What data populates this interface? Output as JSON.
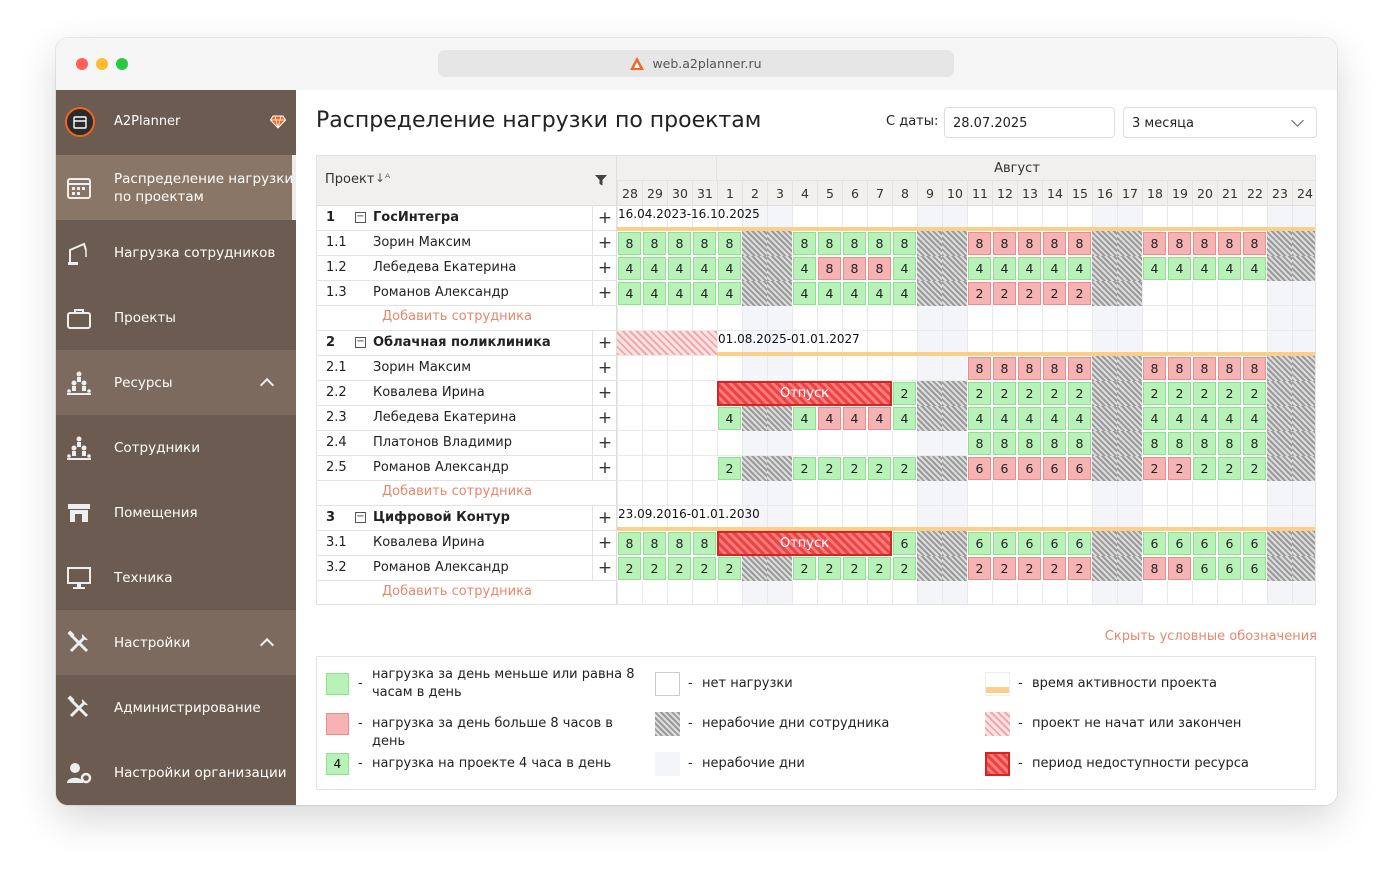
{
  "browser": {
    "url": "web.a2planner.ru"
  },
  "sidebar": {
    "app_name": "A2Planner",
    "items": [
      {
        "label": "Распределение нагрузки по проектам",
        "icon": "calendar-icon",
        "active": true
      },
      {
        "label": "Нагрузка сотрудников",
        "icon": "crane-icon"
      },
      {
        "label": "Проекты",
        "icon": "briefcase-icon"
      },
      {
        "label": "Ресурсы",
        "icon": "people-pyramid-icon",
        "expanded": true
      },
      {
        "label": "Сотрудники",
        "icon": "people-pyramid-icon",
        "sub": true
      },
      {
        "label": "Помещения",
        "icon": "store-icon",
        "sub": true
      },
      {
        "label": "Техника",
        "icon": "monitor-icon",
        "sub": true
      },
      {
        "label": "Настройки",
        "icon": "tools-icon",
        "expanded": true
      },
      {
        "label": "Администрирование",
        "icon": "tools-icon",
        "sub": true
      },
      {
        "label": "Настройки организации",
        "icon": "user-gear-icon",
        "sub": true
      }
    ]
  },
  "page": {
    "title": "Распределение нагрузки по проектам",
    "date_label": "С даты:",
    "date_value": "28.07.2025",
    "period_value": "3 месяца"
  },
  "grid": {
    "project_col_label": "Проект",
    "month": "Август",
    "days": [
      "28",
      "29",
      "30",
      "31",
      "1",
      "2",
      "3",
      "4",
      "5",
      "6",
      "7",
      "8",
      "9",
      "10",
      "11",
      "12",
      "13",
      "14",
      "15",
      "16",
      "17",
      "18",
      "19",
      "20",
      "21",
      "22",
      "23",
      "24"
    ],
    "weekend": [
      5,
      6,
      12,
      13,
      19,
      20,
      26,
      27
    ],
    "add_label": "Добавить сотрудника",
    "rows": [
      {
        "type": "project",
        "num": "1",
        "name": "ГосИнтегра",
        "dates": "16.04.2023-16.10.2025",
        "active_from": 0
      },
      {
        "type": "emp",
        "num": "1.1",
        "name": "Зорин Максим",
        "cells": "8,8,8,8,8,H,H,8,8,8,8,8,H,H,8r,8r,8r,8r,8r,H,H,8r,8r,8r,8r,8r,H,H"
      },
      {
        "type": "emp",
        "num": "1.2",
        "name": "Лебедева Екатерина",
        "cells": "4,4,4,4,4,H,H,4,8r,8r,8r,4,H,H,4,4,4,4,4,H,H,4,4,4,4,4,H,H"
      },
      {
        "type": "emp",
        "num": "1.3",
        "name": "Романов Александр",
        "cells": "4,4,4,4,4,H,H,4,4,4,4,4,H,H,2r,2r,2r,2r,2r,H,H,,,,,,,"
      },
      {
        "type": "add"
      },
      {
        "type": "project",
        "num": "2",
        "name": "Облачная поликлиника",
        "dates": "01.08.2025-01.01.2027",
        "not_started": 4,
        "active_from": 4
      },
      {
        "type": "emp",
        "num": "2.1",
        "name": "Зорин Максим",
        "cells": ",,,,,,,,,,,,,,8r,8r,8r,8r,8r,H,H,8r,8r,8r,8r,8r,H,H"
      },
      {
        "type": "emp",
        "num": "2.2",
        "name": "Ковалева Ирина",
        "cells": ",,,,U,U,U,U,U,U,U,2,H,H,2,2,2,2,2,H,H,2,2,2,2,2,H,H",
        "unav": [
          4,
          10
        ],
        "unav_label": "Отпуск"
      },
      {
        "type": "emp",
        "num": "2.3",
        "name": "Лебедева Екатерина",
        "cells": ",,,,4,H,H,4,4r,4r,4r,4,H,H,4,4,4,4,4,H,H,4,4,4,4,4,H,H"
      },
      {
        "type": "emp",
        "num": "2.4",
        "name": "Платонов Владимир",
        "cells": ",,,,,,,,,,,,,,8,8,8,8,8,H,H,8,8,8,8,8,H,H"
      },
      {
        "type": "emp",
        "num": "2.5",
        "name": "Романов Александр",
        "cells": ",,,,2,H,H,2,2,2,2,2,H,H,6r,6r,6r,6r,6r,H,H,2r,2r,2,2,2,H,H"
      },
      {
        "type": "add"
      },
      {
        "type": "project",
        "num": "3",
        "name": "Цифровой Контур",
        "dates": "23.09.2016-01.01.2030",
        "active_from": 0
      },
      {
        "type": "emp",
        "num": "3.1",
        "name": "Ковалева Ирина",
        "cells": "8,8,8,8,U,U,U,U,U,U,U,6,H,H,6,6,6,6,6,H,H,6,6,6,6,6,H,H",
        "unav": [
          4,
          10
        ],
        "unav_label": "Отпуск"
      },
      {
        "type": "emp",
        "num": "3.2",
        "name": "Романов Александр",
        "cells": "2,2,2,2,2,H,H,2,2,2,2,2,H,H,2r,2r,2r,2r,2r,H,H,8r,8r,6,6,6,H,H"
      },
      {
        "type": "add"
      }
    ]
  },
  "legend": {
    "toggle_label": "Скрыть условные обозначения",
    "items": [
      {
        "kind": "ok",
        "text": "нагрузка за день меньше или равна 8 часам в день"
      },
      {
        "kind": "over",
        "text": "нагрузка за день больше 8 часов в день"
      },
      {
        "kind": "num",
        "value": "4",
        "text": "нагрузка на проекте 4 часа в день"
      },
      {
        "kind": "empty",
        "text": "нет нагрузки"
      },
      {
        "kind": "hatch",
        "text": "нерабочие дни сотрудника"
      },
      {
        "kind": "wkd",
        "text": "нерабочие дни"
      },
      {
        "kind": "active",
        "text": "время активности проекта"
      },
      {
        "kind": "notstarted",
        "text": "проект не начат или закончен"
      },
      {
        "kind": "unav",
        "text": "период недоступности ресурса"
      }
    ]
  },
  "colors": {
    "sidebar": "#6c5b50",
    "sidebar_active": "#897667",
    "accent": "#e7876b",
    "ok": "#b8f2b8",
    "over": "#f6b3b3",
    "active_line": "#fbcf87"
  }
}
